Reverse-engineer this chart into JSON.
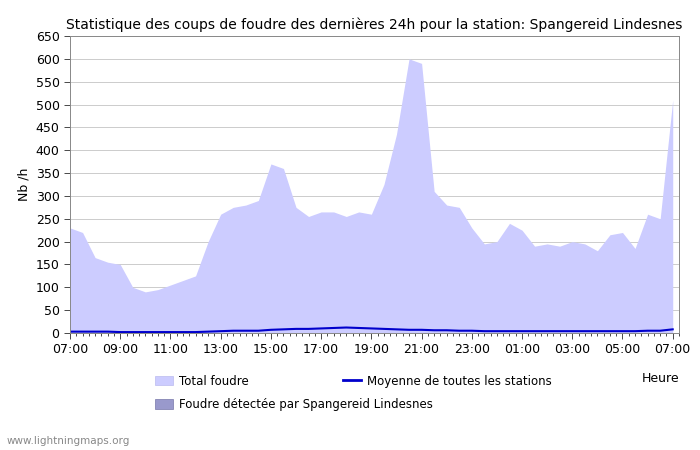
{
  "title": "Statistique des coups de foudre des dernières 24h pour la station: Spangereid Lindesnes",
  "ylabel": "Nb /h",
  "xlabel": "Heure",
  "watermark": "www.lightningmaps.org",
  "ylim": [
    0,
    650
  ],
  "yticks": [
    0,
    50,
    100,
    150,
    200,
    250,
    300,
    350,
    400,
    450,
    500,
    550,
    600,
    650
  ],
  "xtick_labels": [
    "07:00",
    "09:00",
    "11:00",
    "13:00",
    "15:00",
    "17:00",
    "19:00",
    "21:00",
    "23:00",
    "01:00",
    "03:00",
    "05:00",
    "07:00"
  ],
  "legend": {
    "total_foudre_label": "Total foudre",
    "moyenne_label": "Moyenne de toutes les stations",
    "detected_label": "Foudre détectée par Spangereid Lindesnes"
  },
  "total_color": "#ccccff",
  "total_edge_color": "#bbbbee",
  "detected_color": "#9999cc",
  "detected_edge_color": "#7777aa",
  "mean_color": "#0000cc",
  "background_color": "#ffffff",
  "grid_color": "#cccccc",
  "x_hours": [
    0,
    1,
    2,
    3,
    4,
    5,
    6,
    7,
    8,
    9,
    10,
    11,
    12,
    13,
    14,
    15,
    16,
    17,
    18,
    19,
    20,
    21,
    22,
    23,
    24,
    25,
    26,
    27,
    28,
    29,
    30,
    31,
    32,
    33,
    34,
    35,
    36,
    37,
    38,
    39,
    40,
    41,
    42,
    43,
    44,
    45,
    46,
    47,
    48
  ],
  "total_values": [
    230,
    220,
    165,
    155,
    150,
    100,
    90,
    95,
    105,
    115,
    125,
    200,
    260,
    275,
    280,
    290,
    370,
    360,
    275,
    255,
    265,
    265,
    255,
    265,
    260,
    325,
    435,
    600,
    590,
    310,
    280,
    275,
    230,
    195,
    200,
    240,
    225,
    190,
    195,
    190,
    200,
    195,
    180,
    215,
    220,
    185,
    260,
    250,
    510
  ],
  "detected_values": [
    2,
    2,
    2,
    2,
    1,
    1,
    1,
    1,
    1,
    1,
    1,
    2,
    3,
    3,
    3,
    3,
    4,
    4,
    3,
    3,
    3,
    3,
    3,
    4,
    4,
    4,
    5,
    6,
    6,
    3,
    3,
    3,
    2,
    2,
    2,
    3,
    2,
    2,
    2,
    2,
    2,
    2,
    2,
    3,
    2,
    2,
    3,
    3,
    5
  ],
  "mean_values": [
    3,
    3,
    3,
    3,
    2,
    2,
    2,
    2,
    2,
    2,
    2,
    3,
    4,
    5,
    5,
    5,
    7,
    8,
    9,
    9,
    10,
    11,
    12,
    11,
    10,
    9,
    8,
    7,
    7,
    6,
    6,
    5,
    5,
    4,
    4,
    4,
    4,
    4,
    4,
    4,
    4,
    4,
    4,
    4,
    4,
    4,
    5,
    5,
    8
  ]
}
